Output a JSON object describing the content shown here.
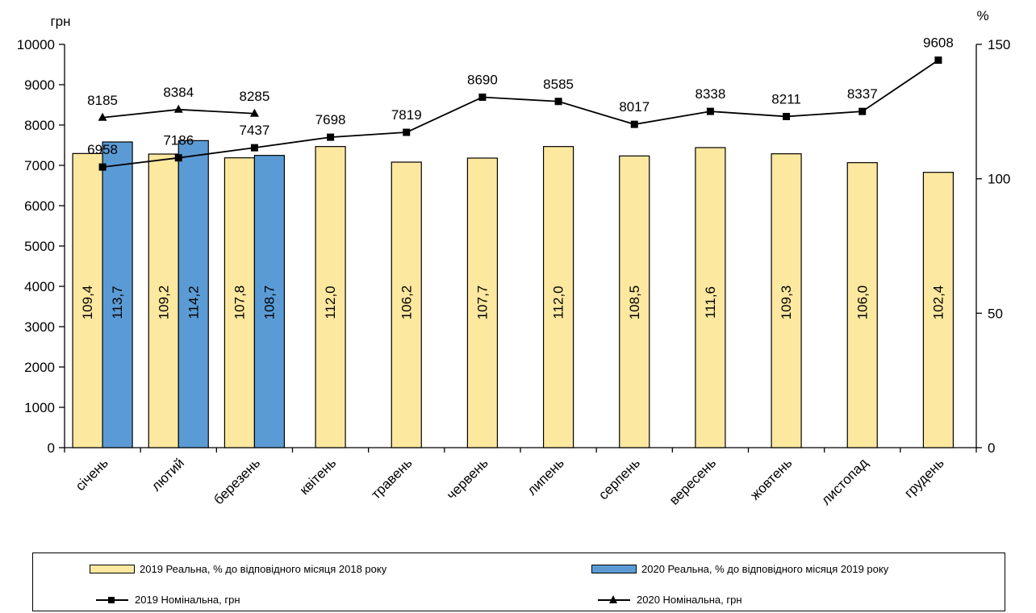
{
  "chart_data": {
    "type": "bar",
    "categories": [
      "січень",
      "лютий",
      "березень",
      "квітень",
      "травень",
      "червень",
      "липень",
      "серпень",
      "вересень",
      "жовтень",
      "листопад",
      "грудень"
    ],
    "y_left": {
      "label": "грн",
      "min": 0,
      "max": 10000,
      "ticks": [
        0,
        1000,
        2000,
        3000,
        4000,
        5000,
        6000,
        7000,
        8000,
        9000,
        10000
      ]
    },
    "y_right": {
      "label": "%",
      "min": 0,
      "max": 150,
      "ticks": [
        0,
        50,
        100,
        150
      ]
    },
    "bar_series": [
      {
        "name": "2019 Реальна, % до відповідного місяця 2018 року",
        "color": "#fde8a0",
        "axis": "right",
        "values": [
          109.4,
          109.2,
          107.8,
          112.0,
          106.2,
          107.7,
          112.0,
          108.5,
          111.6,
          109.3,
          106.0,
          102.4
        ],
        "labels": [
          "109,4",
          "109,2",
          "107,8",
          "112,0",
          "106,2",
          "107,7",
          "112,0",
          "108,5",
          "111,6",
          "109,3",
          "106,0",
          "102,4"
        ]
      },
      {
        "name": "2020 Реальна, % до відповідного місяця 2019 року",
        "color": "#5b9bd5",
        "axis": "right",
        "values": [
          113.7,
          114.2,
          108.7,
          null,
          null,
          null,
          null,
          null,
          null,
          null,
          null,
          null
        ],
        "labels": [
          "113,7",
          "114,2",
          "108,7",
          "",
          "",
          "",
          "",
          "",
          "",
          "",
          "",
          ""
        ]
      }
    ],
    "line_series": [
      {
        "name": "2019 Номінальна, грн",
        "marker": "square",
        "axis": "left",
        "values": [
          6958,
          7186,
          7437,
          7698,
          7819,
          8690,
          8585,
          8017,
          8338,
          8211,
          8337,
          9608
        ],
        "labels": [
          "6958",
          "7186",
          "7437",
          "7698",
          "7819",
          "8690",
          "8585",
          "8017",
          "8338",
          "8211",
          "8337",
          "9608"
        ]
      },
      {
        "name": "2020 Номінальна, грн",
        "marker": "triangle",
        "axis": "left",
        "values": [
          8185,
          8384,
          8285,
          null,
          null,
          null,
          null,
          null,
          null,
          null,
          null,
          null
        ],
        "labels": [
          "8185",
          "8384",
          "8285",
          "",
          "",
          "",
          "",
          "",
          "",
          "",
          "",
          ""
        ]
      }
    ],
    "grid": false,
    "legend_position": "bottom"
  }
}
